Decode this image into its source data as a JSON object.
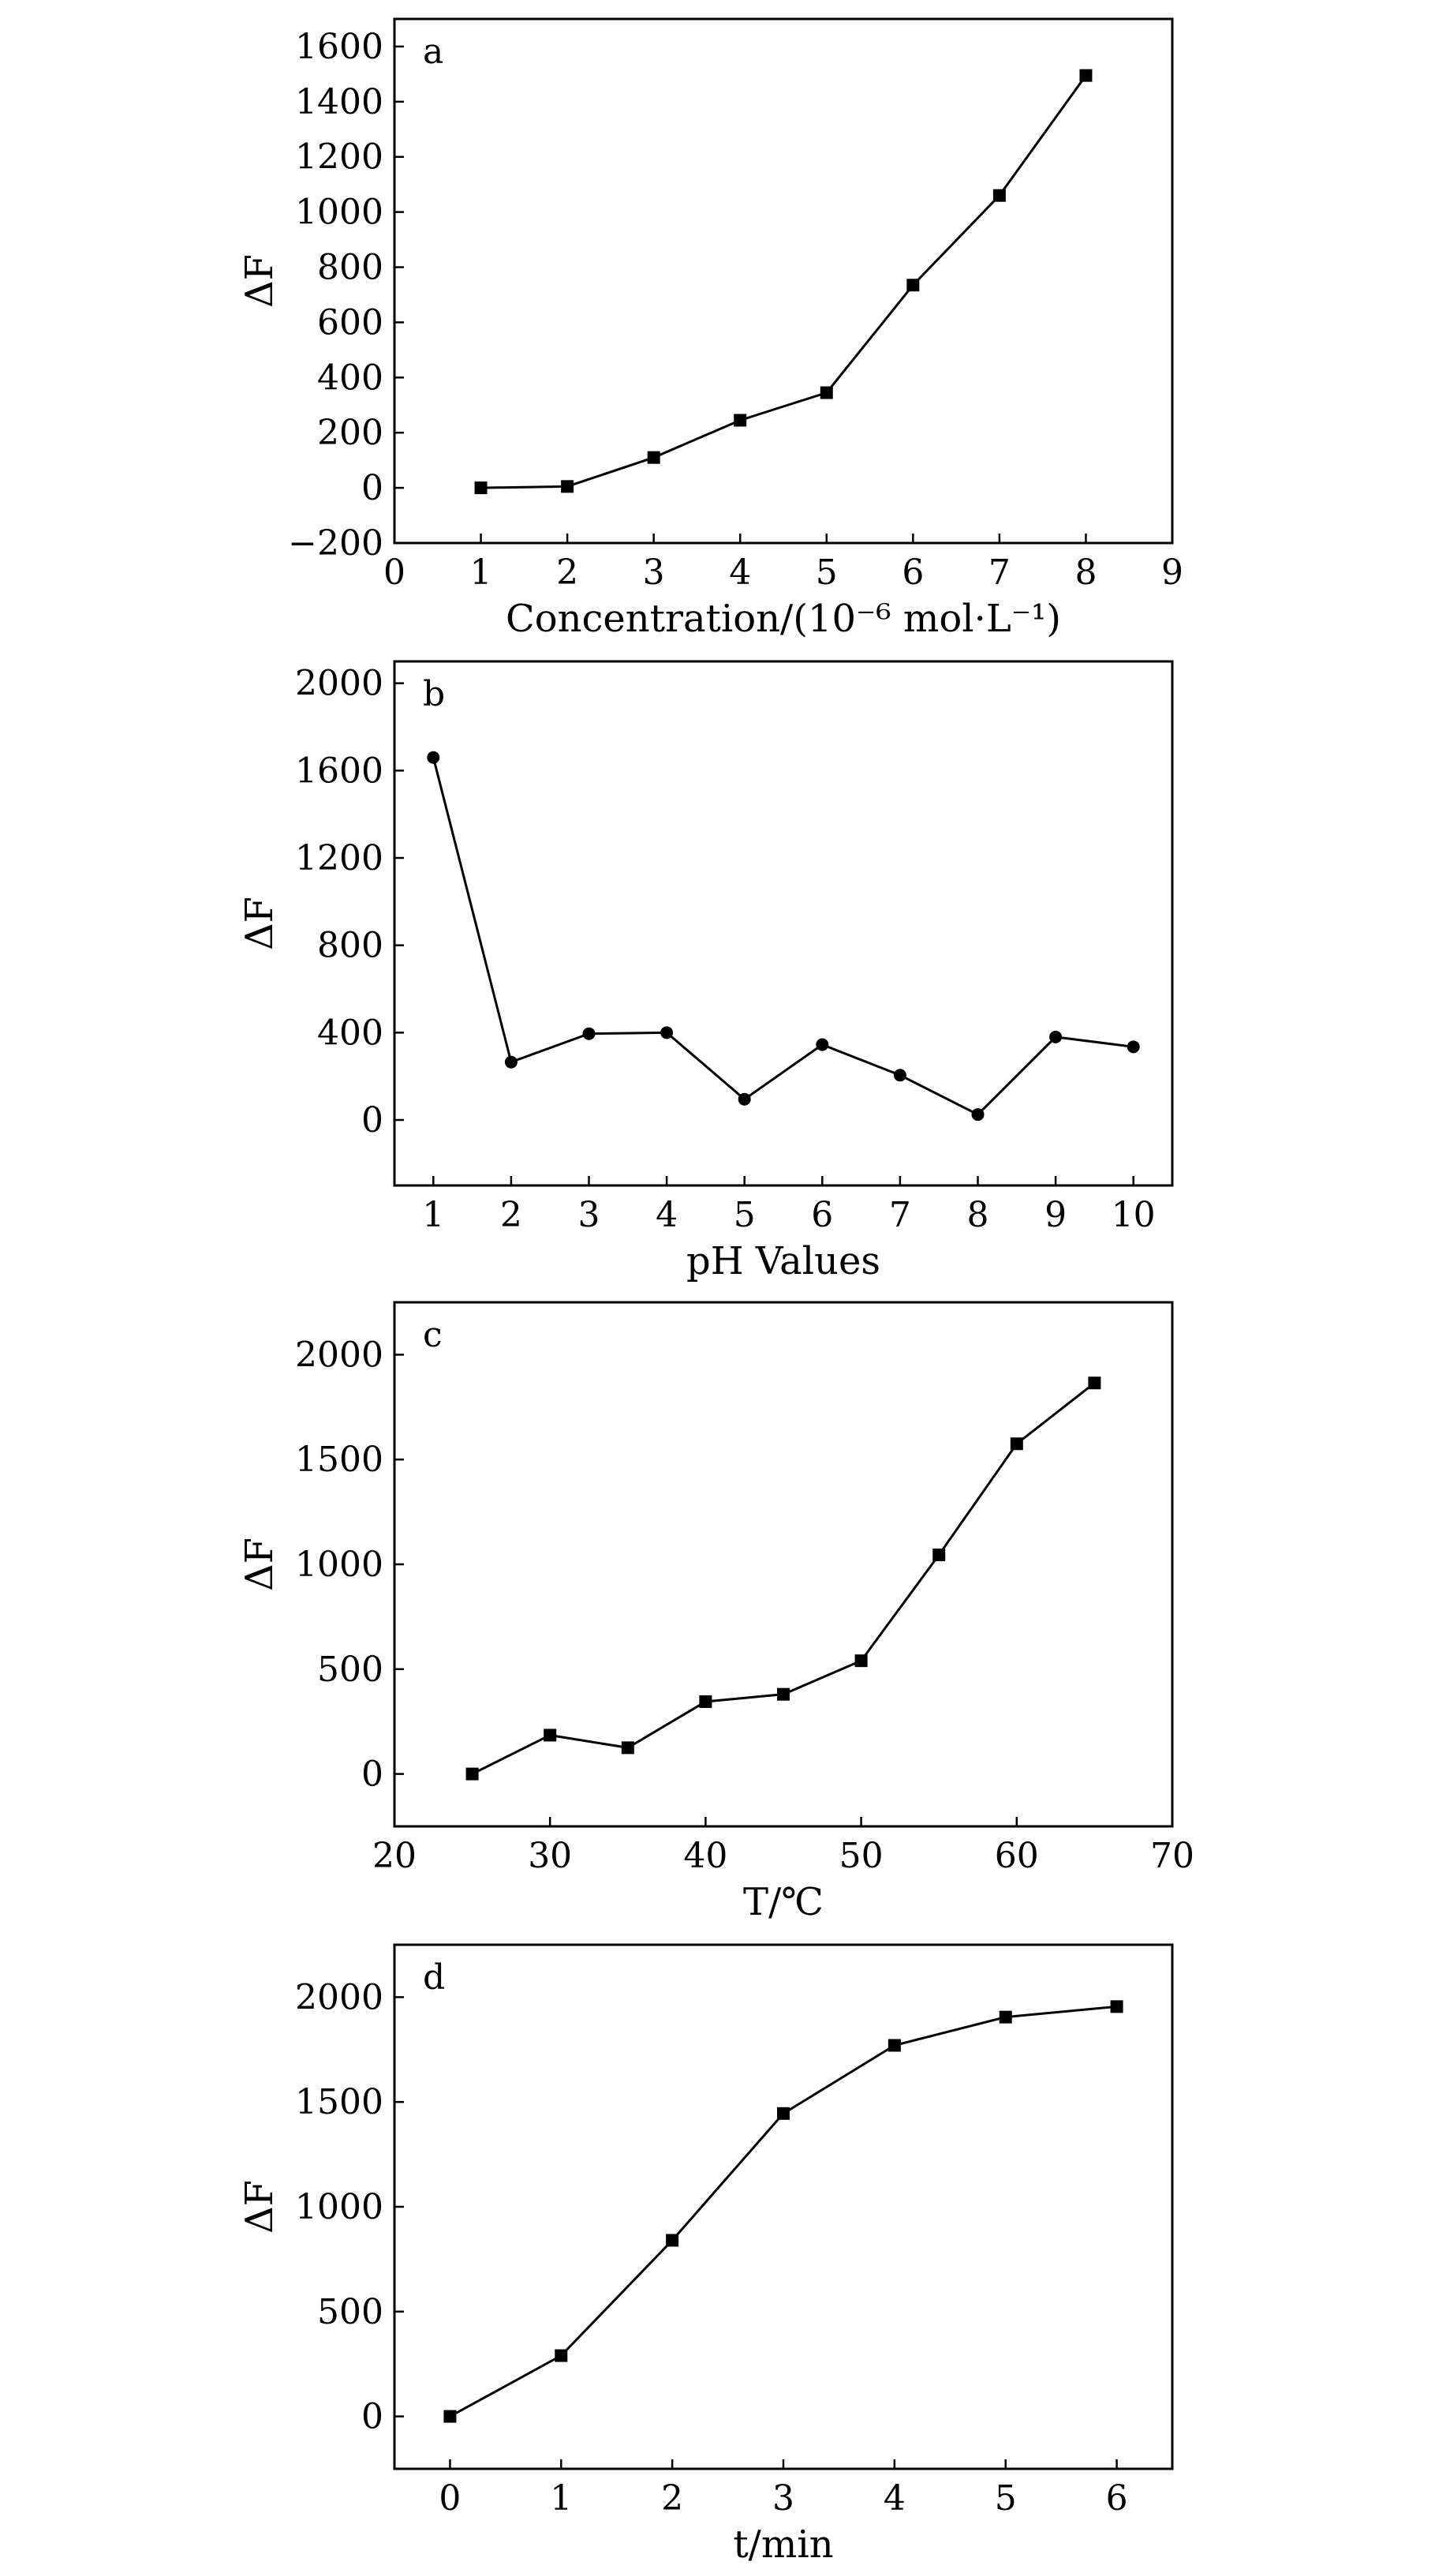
{
  "chart_data": [
    {
      "panel": "a",
      "type": "line",
      "marker": "square",
      "xlabel": "Concentration/(10⁻⁶ mol·L⁻¹)",
      "ylabel": "ΔF",
      "xlim": [
        0,
        9
      ],
      "ylim": [
        -200,
        1700
      ],
      "xticks": [
        0,
        1,
        2,
        3,
        4,
        5,
        6,
        7,
        8,
        9
      ],
      "yticks": [
        -200,
        0,
        200,
        400,
        600,
        800,
        1000,
        1200,
        1400,
        1600
      ],
      "series": [
        {
          "x": [
            1,
            2,
            3,
            4,
            5,
            6,
            7,
            8
          ],
          "y": [
            0,
            5,
            110,
            245,
            345,
            735,
            1060,
            1495
          ]
        }
      ]
    },
    {
      "panel": "b",
      "type": "line",
      "marker": "circle",
      "xlabel": "pH Values",
      "ylabel": "ΔF",
      "xlim": [
        0.5,
        10.5
      ],
      "ylim": [
        -300,
        2100
      ],
      "xticks": [
        1,
        2,
        3,
        4,
        5,
        6,
        7,
        8,
        9,
        10
      ],
      "yticks": [
        0,
        400,
        800,
        1200,
        1600,
        2000
      ],
      "series": [
        {
          "x": [
            1,
            2,
            3,
            4,
            5,
            6,
            7,
            8,
            9,
            10
          ],
          "y": [
            1660,
            265,
            395,
            400,
            95,
            345,
            205,
            25,
            380,
            335
          ]
        }
      ]
    },
    {
      "panel": "c",
      "type": "line",
      "marker": "square",
      "xlabel": "T/℃",
      "ylabel": "ΔF",
      "xlim": [
        20,
        70
      ],
      "ylim": [
        -250,
        2250
      ],
      "xticks": [
        20,
        30,
        40,
        50,
        60,
        70
      ],
      "yticks": [
        0,
        500,
        1000,
        1500,
        2000
      ],
      "series": [
        {
          "x": [
            25,
            30,
            35,
            40,
            45,
            50,
            55,
            60,
            65
          ],
          "y": [
            0,
            185,
            125,
            345,
            380,
            540,
            1045,
            1575,
            1865
          ]
        }
      ]
    },
    {
      "panel": "d",
      "type": "line",
      "marker": "square",
      "xlabel": "t/min",
      "ylabel": "ΔF",
      "xlim": [
        -0.5,
        6.5
      ],
      "ylim": [
        -250,
        2250
      ],
      "xticks": [
        0,
        1,
        2,
        3,
        4,
        5,
        6
      ],
      "yticks": [
        0,
        500,
        1000,
        1500,
        2000
      ],
      "series": [
        {
          "x": [
            0,
            1,
            2,
            3,
            4,
            5,
            6
          ],
          "y": [
            0,
            290,
            840,
            1445,
            1770,
            1905,
            1955
          ]
        }
      ]
    }
  ]
}
